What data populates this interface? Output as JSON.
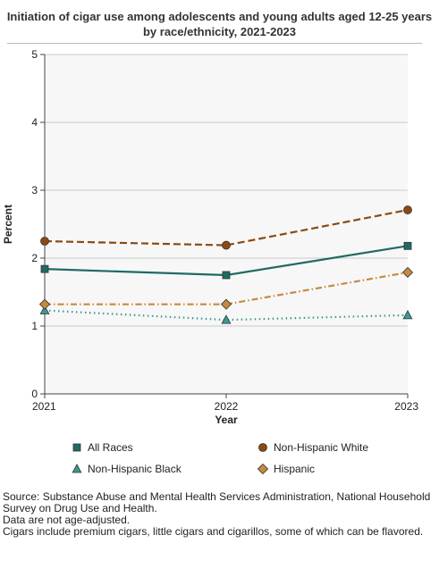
{
  "chart_data": {
    "type": "line",
    "title": "Initiation of cigar use among adolescents and young adults aged 12-25 years by race/ethnicity, 2021-2023",
    "xlabel": "Year",
    "ylabel": "Percent",
    "x": [
      "2021",
      "2022",
      "2023"
    ],
    "ylim": [
      0,
      5
    ],
    "yticks": [
      "0",
      "1",
      "2",
      "3",
      "4",
      "5"
    ],
    "grid": true,
    "legend_position": "bottom",
    "series": [
      {
        "name": "All Races",
        "values": [
          1.84,
          1.75,
          2.18
        ],
        "color": "#1f6b62",
        "marker": "square",
        "dash": "solid"
      },
      {
        "name": "Non-Hispanic White",
        "values": [
          2.25,
          2.19,
          2.71
        ],
        "color": "#8b4a12",
        "marker": "circle",
        "dash": "dashed"
      },
      {
        "name": "Non-Hispanic Black",
        "values": [
          1.23,
          1.09,
          1.16
        ],
        "color": "#3a9a8f",
        "marker": "triangle",
        "dash": "dotted"
      },
      {
        "name": "Hispanic",
        "values": [
          1.32,
          1.32,
          1.79
        ],
        "color": "#c68a3e",
        "marker": "diamond",
        "dash": "dashdot"
      }
    ]
  },
  "notes": [
    "Source: Substance Abuse and Mental Health Services Administration, National Household Survey on Drug Use and Health.",
    "Data are not age-adjusted.",
    "Cigars include premium cigars, little cigars and cigarillos, some of which can be flavored."
  ]
}
